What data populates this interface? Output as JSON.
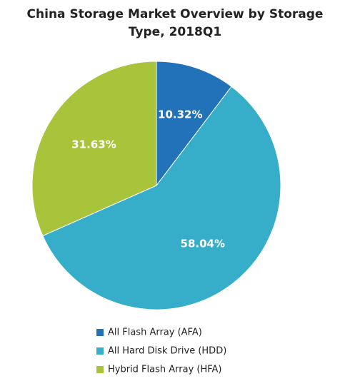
{
  "chart_data": {
    "type": "pie",
    "title": "China Storage Market Overview by Storage Type, 2018Q1",
    "categories": [
      "All Flash Array (AFA)",
      "All Hard Disk Drive (HDD)",
      "Hybrid Flash Array (HFA)"
    ],
    "values": [
      10.32,
      58.04,
      31.63
    ],
    "value_labels": [
      "10.32%",
      "58.04%",
      "31.63%"
    ],
    "colors": [
      "#2272b9",
      "#36adc9",
      "#a8c43a"
    ],
    "legend": "bottom"
  }
}
